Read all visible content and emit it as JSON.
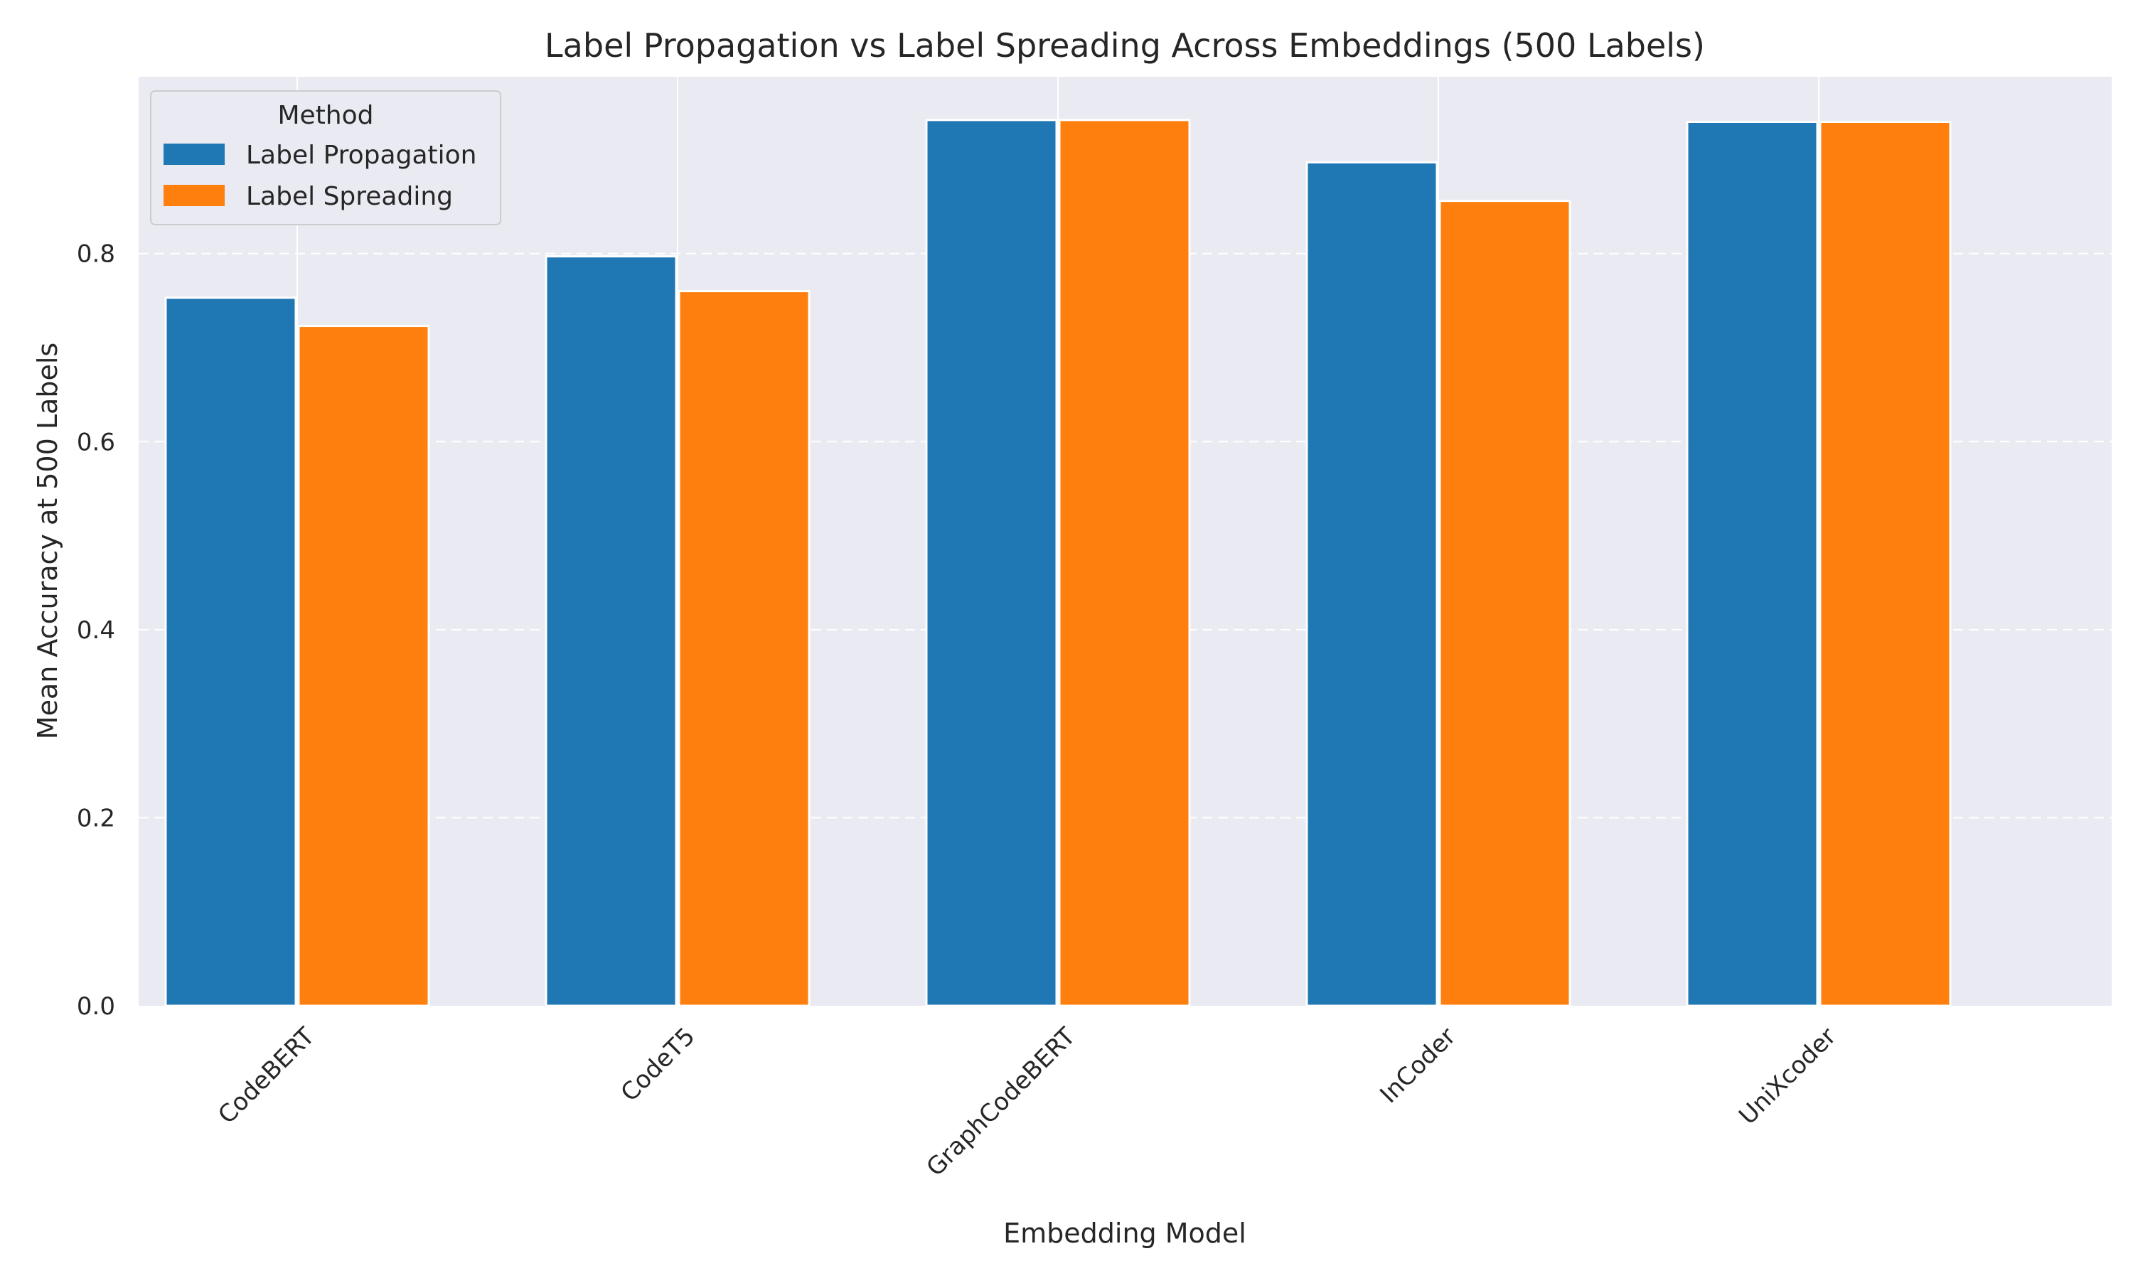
{
  "chart_data": {
    "type": "bar",
    "title": "Label Propagation vs Label Spreading Across Embeddings (500 Labels)",
    "xlabel": "Embedding Model",
    "ylabel": "Mean Accuracy at 500 Labels",
    "categories": [
      "CodeBERT",
      "CodeT5",
      "GraphCodeBERT",
      "InCoder",
      "UniXcoder"
    ],
    "series": [
      {
        "name": "Label Propagation",
        "color": "#1f77b4",
        "values": [
          0.753,
          0.797,
          0.942,
          0.897,
          0.94
        ]
      },
      {
        "name": "Label Spreading",
        "color": "#ff7f0e",
        "values": [
          0.723,
          0.76,
          0.942,
          0.856,
          0.94
        ]
      }
    ],
    "ylim": [
      0,
      0.988
    ],
    "yticks": [
      0.0,
      0.2,
      0.4,
      0.6,
      0.8
    ],
    "ytick_labels": [
      "0.0",
      "0.2",
      "0.4",
      "0.6",
      "0.8"
    ],
    "legend": {
      "title": "Method",
      "placement": "top-left"
    },
    "grid": "y-dashed",
    "background": "#eaeaf2"
  }
}
